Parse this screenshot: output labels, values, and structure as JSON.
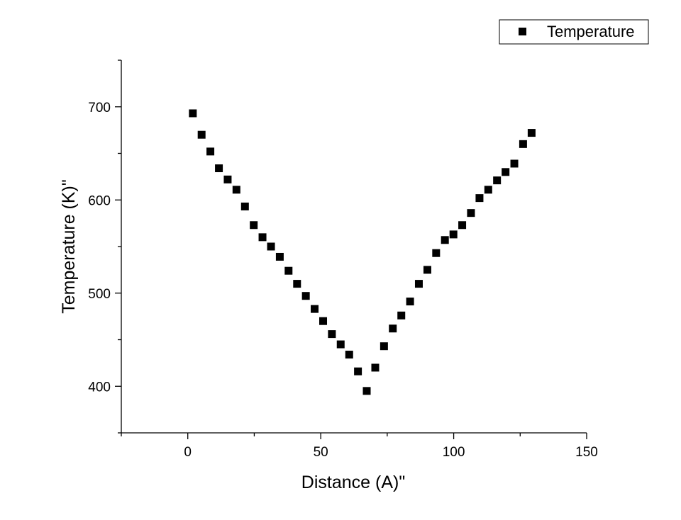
{
  "chart_data": {
    "type": "scatter",
    "title": "",
    "xlabel": "Distance (A)\"",
    "ylabel": "Temperature (K)\"",
    "xlim": [
      -25,
      150
    ],
    "ylim": [
      350,
      750
    ],
    "x_ticks": [
      0,
      50,
      100,
      150
    ],
    "y_ticks": [
      400,
      500,
      600,
      700
    ],
    "x_tick_labels": [
      "0",
      "50",
      "100",
      "150"
    ],
    "y_tick_labels": [
      "400",
      "500",
      "600",
      "700"
    ],
    "grid": false,
    "legend": {
      "placement": "top-right",
      "entries": [
        "Temperature"
      ]
    },
    "marker": "square",
    "color": "#000000",
    "series": [
      {
        "name": "Temperature",
        "x": [
          1.9,
          5.2,
          8.5,
          11.7,
          15.0,
          18.3,
          21.5,
          24.8,
          28.1,
          31.3,
          34.6,
          37.9,
          41.1,
          44.4,
          47.7,
          50.9,
          54.2,
          57.5,
          60.7,
          64.0,
          67.3,
          70.5,
          73.8,
          77.1,
          80.3,
          83.6,
          86.9,
          90.1,
          93.4,
          96.7,
          99.9,
          103.2,
          106.5,
          109.7,
          113.0,
          116.3,
          119.5,
          122.8,
          126.1,
          129.3
        ],
        "y": [
          693,
          670,
          652,
          634,
          622,
          611,
          593,
          573,
          560,
          550,
          539,
          524,
          510,
          497,
          483,
          470,
          456,
          445,
          434,
          416,
          395,
          420,
          443,
          462,
          476,
          491,
          510,
          525,
          543,
          557,
          563,
          573,
          586,
          602,
          611,
          621,
          630,
          639,
          660,
          672
        ]
      }
    ]
  }
}
